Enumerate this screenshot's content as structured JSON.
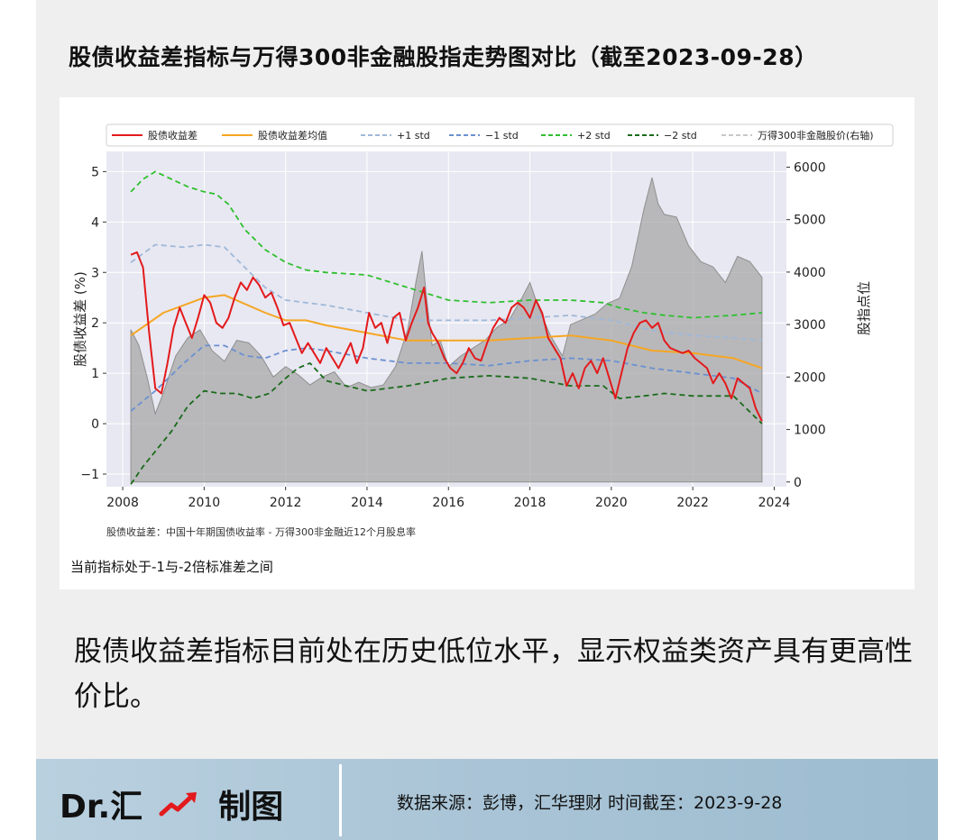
{
  "title": "股债收益差指标与万得300非金融股指走势图对比（截至2023-09-28）",
  "note": "股债收益差：中国十年期国债收益率 - 万得300非金融近12个月股息率",
  "status": "当前指标处于-1与-2倍标准差之间",
  "summary": "股债收益差指标目前处在历史低位水平，显示权益类资产具有更高性价比。",
  "footer": {
    "brand_name": "Dr.汇",
    "brand_suffix": "制图",
    "source": "数据来源：彭博，汇华理财  时间截至：2023-9-28"
  },
  "colors": {
    "spread": "#e31a1c",
    "mean": "#f5a623",
    "std1": "#9fb8d8",
    "std_neg1": "#6a90d0",
    "std2": "#2fbf2f",
    "std_neg2": "#1a6b1a",
    "index_fill": "#a8a8a8",
    "plot_bg": "#e8e8f2"
  },
  "chart_data": {
    "type": "line",
    "title": "",
    "xlabel": "",
    "ylabel": "股债收益差 (%)",
    "y2label": "股指点位",
    "xlim": [
      2007.6,
      2024.3
    ],
    "ylim": [
      -1.25,
      5.4
    ],
    "y2lim": [
      -90,
      6300
    ],
    "xticks": [
      2008,
      2010,
      2012,
      2014,
      2016,
      2018,
      2020,
      2022,
      2024
    ],
    "yticks": [
      -1,
      0,
      1,
      2,
      3,
      4,
      5
    ],
    "y2ticks": [
      0,
      1000,
      2000,
      3000,
      4000,
      5000,
      6000
    ],
    "legend": [
      "股债收益差",
      "股债收益差均值",
      "+1 std",
      "−1 std",
      "+2 std",
      "−2 std",
      "万得300非金融股价(右轴)"
    ],
    "legend_position": "top",
    "series": [
      {
        "name": "股债收益差",
        "axis": "left",
        "x": [
          2008.2,
          2008.35,
          2008.5,
          2008.65,
          2008.8,
          2008.95,
          2009.1,
          2009.25,
          2009.4,
          2009.55,
          2009.7,
          2009.85,
          2010.0,
          2010.15,
          2010.3,
          2010.45,
          2010.6,
          2010.75,
          2010.9,
          2011.05,
          2011.2,
          2011.35,
          2011.5,
          2011.65,
          2011.8,
          2011.95,
          2012.1,
          2012.25,
          2012.4,
          2012.55,
          2012.7,
          2012.85,
          2013.0,
          2013.15,
          2013.3,
          2013.45,
          2013.6,
          2013.75,
          2013.9,
          2014.05,
          2014.2,
          2014.35,
          2014.5,
          2014.65,
          2014.8,
          2014.95,
          2015.1,
          2015.25,
          2015.4,
          2015.5,
          2015.6,
          2015.75,
          2015.9,
          2016.05,
          2016.2,
          2016.35,
          2016.5,
          2016.65,
          2016.8,
          2016.95,
          2017.1,
          2017.25,
          2017.4,
          2017.55,
          2017.7,
          2017.85,
          2018.0,
          2018.15,
          2018.3,
          2018.45,
          2018.6,
          2018.75,
          2018.9,
          2019.05,
          2019.2,
          2019.35,
          2019.5,
          2019.65,
          2019.8,
          2019.95,
          2020.1,
          2020.25,
          2020.4,
          2020.55,
          2020.7,
          2020.85,
          2021.0,
          2021.15,
          2021.3,
          2021.45,
          2021.6,
          2021.75,
          2021.9,
          2022.05,
          2022.2,
          2022.35,
          2022.5,
          2022.65,
          2022.8,
          2022.95,
          2023.1,
          2023.25,
          2023.4,
          2023.55,
          2023.7
        ],
        "values": [
          3.35,
          3.4,
          3.1,
          1.8,
          0.7,
          0.6,
          1.2,
          1.9,
          2.3,
          2.0,
          1.7,
          2.1,
          2.55,
          2.4,
          2.0,
          1.9,
          2.1,
          2.5,
          2.8,
          2.65,
          2.9,
          2.75,
          2.5,
          2.6,
          2.3,
          1.95,
          2.0,
          1.7,
          1.4,
          1.6,
          1.4,
          1.2,
          1.5,
          1.3,
          1.1,
          1.35,
          1.6,
          1.2,
          1.5,
          2.2,
          1.9,
          2.0,
          1.6,
          2.1,
          2.2,
          1.65,
          2.0,
          2.3,
          2.7,
          2.0,
          1.8,
          1.6,
          1.3,
          1.1,
          1.0,
          1.2,
          1.5,
          1.3,
          1.25,
          1.6,
          1.9,
          2.1,
          2.0,
          2.3,
          2.4,
          2.3,
          2.1,
          2.45,
          2.2,
          1.7,
          1.5,
          1.3,
          0.75,
          1.0,
          0.7,
          1.1,
          1.25,
          1.0,
          1.3,
          0.9,
          0.5,
          1.0,
          1.5,
          1.8,
          2.0,
          2.05,
          1.9,
          2.0,
          1.65,
          1.5,
          1.45,
          1.4,
          1.45,
          1.3,
          1.2,
          1.1,
          0.8,
          1.0,
          0.8,
          0.5,
          0.9,
          0.8,
          0.7,
          0.3,
          0.05
        ]
      },
      {
        "name": "股债收益差均值",
        "axis": "left",
        "x": [
          2008.2,
          2009.0,
          2010.0,
          2010.5,
          2011.5,
          2012.0,
          2012.5,
          2013.0,
          2014.0,
          2015.0,
          2016.0,
          2017.0,
          2018.0,
          2019.0,
          2020.0,
          2021.0,
          2022.0,
          2023.0,
          2023.7
        ],
        "values": [
          1.75,
          2.2,
          2.5,
          2.55,
          2.2,
          2.05,
          2.05,
          1.95,
          1.8,
          1.65,
          1.65,
          1.65,
          1.7,
          1.75,
          1.65,
          1.45,
          1.4,
          1.3,
          1.1
        ]
      },
      {
        "name": "+1 std",
        "axis": "left",
        "x": [
          2008.2,
          2008.8,
          2009.5,
          2010.0,
          2010.5,
          2011.0,
          2011.5,
          2012.0,
          2012.5,
          2013.0,
          2014.0,
          2015.0,
          2016.0,
          2017.0,
          2018.0,
          2019.0,
          2020.0,
          2021.0,
          2022.0,
          2023.0,
          2023.7
        ],
        "values": [
          3.2,
          3.55,
          3.5,
          3.55,
          3.5,
          3.1,
          2.7,
          2.45,
          2.4,
          2.35,
          2.2,
          2.05,
          2.05,
          2.05,
          2.1,
          2.15,
          2.05,
          1.85,
          1.75,
          1.7,
          1.65
        ]
      },
      {
        "name": "−1 std",
        "axis": "left",
        "x": [
          2008.2,
          2008.8,
          2009.5,
          2010.0,
          2010.5,
          2011.0,
          2011.5,
          2012.0,
          2012.5,
          2013.0,
          2014.0,
          2015.0,
          2016.0,
          2017.0,
          2018.0,
          2019.0,
          2020.0,
          2021.0,
          2022.0,
          2023.0,
          2023.7
        ],
        "values": [
          0.25,
          0.65,
          1.2,
          1.55,
          1.55,
          1.35,
          1.3,
          1.45,
          1.5,
          1.45,
          1.3,
          1.2,
          1.2,
          1.15,
          1.25,
          1.3,
          1.25,
          1.1,
          1.0,
          0.9,
          0.6
        ]
      },
      {
        "name": "+2 std",
        "axis": "left",
        "x": [
          2008.2,
          2008.5,
          2008.8,
          2009.2,
          2009.6,
          2010.0,
          2010.3,
          2010.6,
          2011.0,
          2011.5,
          2012.0,
          2012.5,
          2013.0,
          2014.0,
          2015.0,
          2016.0,
          2017.0,
          2018.0,
          2019.0,
          2019.8,
          2020.2,
          2020.8,
          2021.3,
          2022.0,
          2023.0,
          2023.7
        ],
        "values": [
          4.6,
          4.85,
          5.0,
          4.85,
          4.7,
          4.6,
          4.55,
          4.35,
          3.85,
          3.45,
          3.2,
          3.05,
          3.0,
          2.95,
          2.7,
          2.45,
          2.4,
          2.45,
          2.45,
          2.4,
          2.3,
          2.2,
          2.15,
          2.1,
          2.15,
          2.2
        ]
      },
      {
        "name": "−2 std",
        "axis": "left",
        "x": [
          2008.2,
          2008.5,
          2008.8,
          2009.2,
          2009.6,
          2010.0,
          2010.4,
          2010.8,
          2011.2,
          2011.6,
          2012.0,
          2012.3,
          2012.6,
          2013.0,
          2014.0,
          2015.0,
          2016.0,
          2017.0,
          2018.0,
          2019.0,
          2019.8,
          2020.2,
          2020.8,
          2021.3,
          2022.0,
          2023.0,
          2023.7
        ],
        "values": [
          -1.2,
          -0.85,
          -0.55,
          -0.15,
          0.35,
          0.65,
          0.6,
          0.6,
          0.5,
          0.6,
          0.9,
          1.1,
          1.2,
          0.85,
          0.65,
          0.75,
          0.9,
          0.95,
          0.9,
          0.75,
          0.75,
          0.5,
          0.55,
          0.6,
          0.55,
          0.55,
          0.0
        ]
      },
      {
        "name": "万得300非金融股价(右轴)",
        "axis": "right",
        "x": [
          2008.2,
          2008.4,
          2008.6,
          2008.8,
          2009.0,
          2009.3,
          2009.6,
          2009.9,
          2010.2,
          2010.5,
          2010.8,
          2011.1,
          2011.4,
          2011.7,
          2012.0,
          2012.3,
          2012.6,
          2012.9,
          2013.2,
          2013.5,
          2013.8,
          2014.1,
          2014.4,
          2014.7,
          2015.0,
          2015.2,
          2015.35,
          2015.45,
          2015.6,
          2015.8,
          2016.0,
          2016.3,
          2016.6,
          2016.9,
          2017.2,
          2017.5,
          2017.8,
          2018.0,
          2018.2,
          2018.5,
          2018.8,
          2019.0,
          2019.3,
          2019.6,
          2019.9,
          2020.2,
          2020.5,
          2020.8,
          2021.0,
          2021.15,
          2021.3,
          2021.6,
          2021.9,
          2022.2,
          2022.5,
          2022.8,
          2023.1,
          2023.4,
          2023.7
        ],
        "values": [
          2900,
          2600,
          2000,
          1300,
          1700,
          2400,
          2750,
          2900,
          2500,
          2300,
          2700,
          2650,
          2400,
          2000,
          2200,
          2050,
          1850,
          2000,
          2100,
          1800,
          1900,
          1800,
          1850,
          2200,
          2900,
          3800,
          4400,
          3600,
          2600,
          2700,
          2200,
          2400,
          2550,
          2700,
          2950,
          3100,
          3500,
          3800,
          3350,
          2800,
          2400,
          3000,
          3100,
          3200,
          3400,
          3500,
          4100,
          5200,
          5800,
          5300,
          5100,
          5050,
          4500,
          4200,
          4100,
          3800,
          4300,
          4200,
          3900
        ]
      }
    ]
  }
}
